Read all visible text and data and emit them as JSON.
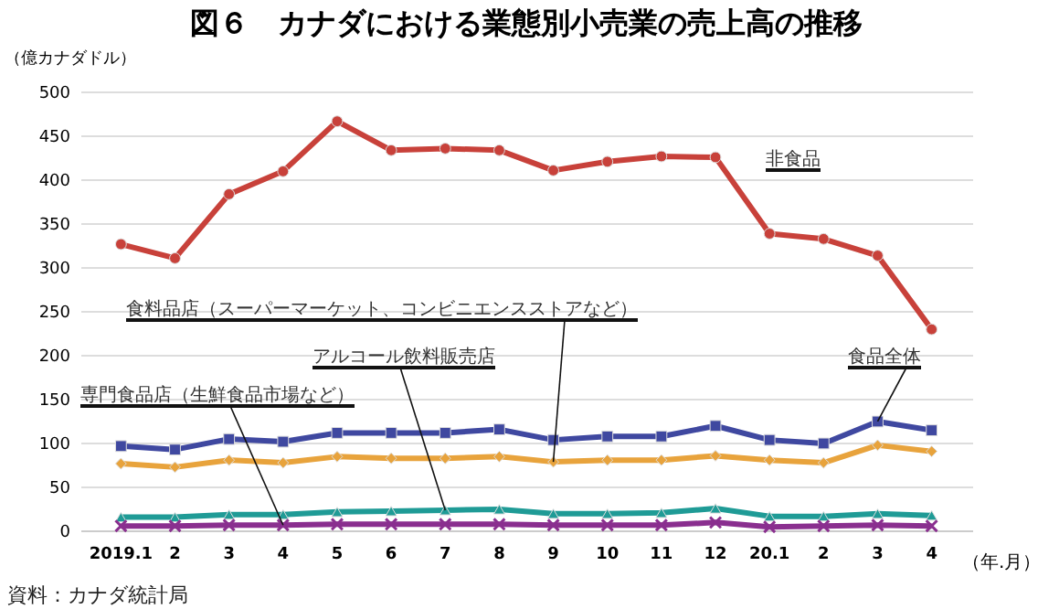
{
  "chart_data": {
    "type": "line",
    "title": "図６　カナダにおける業態別小売業の売上高の推移",
    "xlabel": "（年.月）",
    "ylabel": "（億カナダドル）",
    "categories": [
      "2019.1",
      "2",
      "3",
      "4",
      "5",
      "6",
      "7",
      "8",
      "9",
      "10",
      "11",
      "12",
      "20.1",
      "2",
      "3",
      "4"
    ],
    "series": [
      {
        "name": "非食品",
        "color": "#c8413a",
        "marker": "circle",
        "values": [
          326,
          310,
          383,
          409,
          466,
          433,
          435,
          433,
          410,
          420,
          426,
          425,
          338,
          332,
          313,
          229
        ]
      },
      {
        "name": "食品全体",
        "color": "#3f48a0",
        "marker": "square",
        "values": [
          96,
          92,
          104,
          101,
          111,
          111,
          111,
          115,
          103,
          107,
          107,
          119,
          103,
          99,
          124,
          114
        ]
      },
      {
        "name": "食料品店（スーパーマーケット、コンビニエンスストアなど）",
        "color": "#e8a33c",
        "marker": "diamond",
        "values": [
          76,
          72,
          80,
          77,
          84,
          82,
          82,
          84,
          78,
          80,
          80,
          85,
          80,
          77,
          97,
          90
        ]
      },
      {
        "name": "アルコール飲料販売店",
        "color": "#1f9b96",
        "marker": "triangle",
        "values": [
          15,
          15,
          18,
          18,
          21,
          22,
          23,
          24,
          19,
          19,
          20,
          25,
          16,
          16,
          19,
          17
        ]
      },
      {
        "name": "専門食品店（生鮮食品市場など）",
        "color": "#8a2f8f",
        "marker": "cross",
        "values": [
          5,
          5,
          6,
          6,
          7,
          7,
          7,
          7,
          6,
          6,
          6,
          9,
          4,
          5,
          6,
          5
        ]
      }
    ],
    "ylim": [
      0,
      500
    ],
    "yticks": [
      0,
      50,
      100,
      150,
      200,
      250,
      300,
      350,
      400,
      450,
      500
    ],
    "grid": "y",
    "legend": false,
    "annotations": [
      "資料：カナダ統計局"
    ]
  }
}
